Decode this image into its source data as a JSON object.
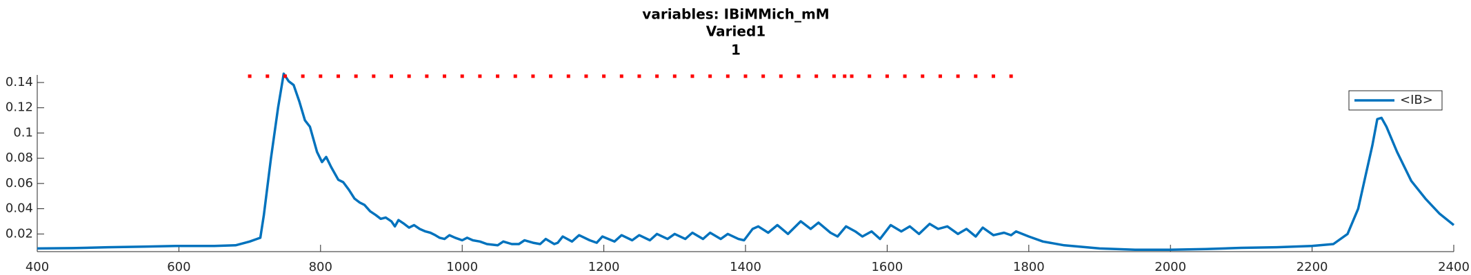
{
  "chart_data": {
    "type": "line",
    "title": "variables: IBiMMich_mM",
    "subtitle": "Varied1",
    "subtitle2": "1",
    "legend": "top-right",
    "xlim": [
      400,
      2400
    ],
    "xticks": [
      400,
      600,
      800,
      1000,
      1200,
      1400,
      1600,
      1800,
      2000,
      2200,
      2400
    ],
    "ylim": [
      0.006,
      0.146
    ],
    "yticks": [
      0.02,
      0.04,
      0.06,
      0.08,
      0.1,
      0.12,
      0.14
    ],
    "series": [
      {
        "name": "<IB>",
        "color": "#0072bd",
        "style": "line",
        "x": [
          400,
          450,
          500,
          550,
          600,
          650,
          680,
          700,
          710,
          715,
          720,
          730,
          740,
          748,
          755,
          762,
          770,
          778,
          785,
          795,
          802,
          808,
          815,
          825,
          832,
          840,
          848,
          855,
          862,
          870,
          878,
          885,
          892,
          900,
          905,
          910,
          918,
          925,
          932,
          940,
          948,
          955,
          962,
          968,
          975,
          982,
          990,
          1000,
          1007,
          1015,
          1025,
          1035,
          1050,
          1058,
          1070,
          1080,
          1088,
          1100,
          1110,
          1118,
          1130,
          1135,
          1142,
          1155,
          1165,
          1180,
          1190,
          1198,
          1215,
          1225,
          1240,
          1250,
          1265,
          1275,
          1290,
          1300,
          1315,
          1325,
          1340,
          1350,
          1365,
          1375,
          1390,
          1398,
          1410,
          1418,
          1432,
          1445,
          1460,
          1478,
          1492,
          1503,
          1520,
          1530,
          1542,
          1555,
          1565,
          1578,
          1590,
          1605,
          1620,
          1632,
          1645,
          1660,
          1672,
          1685,
          1700,
          1712,
          1725,
          1735,
          1750,
          1765,
          1775,
          1782,
          1800,
          1820,
          1850,
          1900,
          1950,
          2000,
          2050,
          2100,
          2150,
          2200,
          2230,
          2250,
          2265,
          2275,
          2285,
          2292,
          2298,
          2305,
          2320,
          2340,
          2360,
          2380,
          2400
        ],
        "values": [
          0.0085,
          0.0088,
          0.0095,
          0.01,
          0.0105,
          0.0105,
          0.011,
          0.014,
          0.016,
          0.017,
          0.035,
          0.08,
          0.12,
          0.147,
          0.141,
          0.138,
          0.125,
          0.11,
          0.105,
          0.085,
          0.077,
          0.081,
          0.073,
          0.063,
          0.061,
          0.055,
          0.048,
          0.045,
          0.043,
          0.038,
          0.035,
          0.032,
          0.033,
          0.03,
          0.026,
          0.031,
          0.028,
          0.025,
          0.027,
          0.024,
          0.022,
          0.021,
          0.019,
          0.017,
          0.016,
          0.019,
          0.017,
          0.015,
          0.017,
          0.015,
          0.014,
          0.012,
          0.011,
          0.014,
          0.012,
          0.012,
          0.015,
          0.013,
          0.012,
          0.016,
          0.012,
          0.013,
          0.018,
          0.014,
          0.019,
          0.015,
          0.013,
          0.018,
          0.014,
          0.019,
          0.015,
          0.019,
          0.015,
          0.02,
          0.016,
          0.02,
          0.016,
          0.021,
          0.016,
          0.021,
          0.016,
          0.02,
          0.016,
          0.015,
          0.024,
          0.026,
          0.021,
          0.027,
          0.02,
          0.03,
          0.024,
          0.029,
          0.021,
          0.018,
          0.026,
          0.022,
          0.018,
          0.022,
          0.016,
          0.027,
          0.022,
          0.026,
          0.02,
          0.028,
          0.024,
          0.026,
          0.02,
          0.024,
          0.018,
          0.025,
          0.019,
          0.021,
          0.019,
          0.022,
          0.018,
          0.014,
          0.011,
          0.0085,
          0.0075,
          0.0075,
          0.008,
          0.009,
          0.0095,
          0.0105,
          0.012,
          0.02,
          0.04,
          0.065,
          0.09,
          0.111,
          0.112,
          0.105,
          0.085,
          0.062,
          0.048,
          0.036,
          0.027
        ]
      },
      {
        "color": "#ff0000",
        "style": "dots",
        "x": [
          700,
          725,
          750,
          775,
          800,
          825,
          850,
          875,
          900,
          925,
          950,
          975,
          1000,
          1025,
          1050,
          1075,
          1100,
          1125,
          1150,
          1175,
          1200,
          1225,
          1250,
          1275,
          1300,
          1325,
          1350,
          1375,
          1400,
          1425,
          1450,
          1475,
          1500,
          1525,
          1540,
          1550,
          1575,
          1600,
          1625,
          1650,
          1675,
          1700,
          1725,
          1750,
          1775
        ],
        "values": [
          0.145,
          0.145,
          0.145,
          0.145,
          0.145,
          0.145,
          0.145,
          0.145,
          0.145,
          0.145,
          0.145,
          0.145,
          0.145,
          0.145,
          0.145,
          0.145,
          0.145,
          0.145,
          0.145,
          0.145,
          0.145,
          0.145,
          0.145,
          0.145,
          0.145,
          0.145,
          0.145,
          0.145,
          0.145,
          0.145,
          0.145,
          0.145,
          0.145,
          0.145,
          0.145,
          0.145,
          0.145,
          0.145,
          0.145,
          0.145,
          0.145,
          0.145,
          0.145,
          0.145,
          0.145
        ]
      }
    ]
  }
}
